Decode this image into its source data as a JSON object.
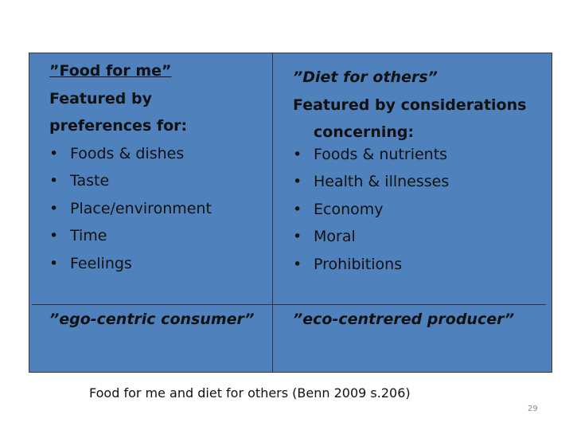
{
  "left": {
    "title": "”Food for me”",
    "heading": "Featured by preferences for:",
    "items": [
      "Foods & dishes",
      "Taste",
      "Place/environment",
      "Time",
      "Feelings"
    ],
    "footer": "”ego-centric consumer”"
  },
  "right": {
    "title": "”Diet for others”",
    "heading": "Featured by considerations concerning:",
    "items": [
      "Foods & nutrients",
      "Health & illnesses",
      "Economy",
      "Moral",
      "Prohibitions"
    ],
    "footer": "”eco-centrered producer”"
  },
  "caption": "Food for me and diet for others (Benn 2009 s.206)",
  "page_number": "29"
}
